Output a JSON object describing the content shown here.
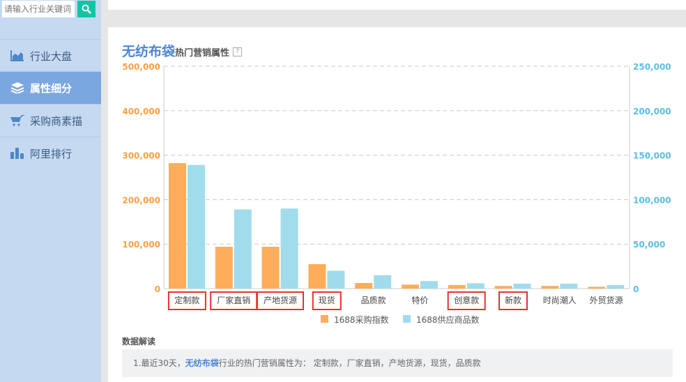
{
  "sidebar": {
    "search_placeholder": "请输入行业关键词",
    "items": [
      {
        "label": "行业大盘",
        "icon": "area-chart-icon"
      },
      {
        "label": "属性细分",
        "icon": "layers-icon",
        "active": true
      },
      {
        "label": "采购商素描",
        "icon": "cart-icon"
      },
      {
        "label": "阿里排行",
        "icon": "bar-chart-icon"
      }
    ]
  },
  "header": {
    "keyword": "无纺布袋",
    "title": "热门营销属性",
    "help": "?"
  },
  "chart_data": {
    "type": "bar",
    "categories": [
      "定制款",
      "厂家直销",
      "产地货源",
      "现货",
      "品质款",
      "特价",
      "创意款",
      "新款",
      "时尚潮人",
      "外贸货源"
    ],
    "highlighted": [
      "定制款",
      "厂家直销",
      "产地货源",
      "现货",
      "创意款",
      "新款"
    ],
    "series": [
      {
        "name": "1688采购指数",
        "axis": "left",
        "color": "#ffad5a",
        "values": [
          282000,
          94000,
          94000,
          55000,
          12500,
          9000,
          8000,
          6000,
          6000,
          4000
        ]
      },
      {
        "name": "1688供应商品数",
        "axis": "right",
        "color": "#a0dcec",
        "values": [
          139000,
          89000,
          90000,
          20000,
          15000,
          8500,
          6000,
          5500,
          5500,
          4000
        ]
      }
    ],
    "left_axis": {
      "range": [
        0,
        500000
      ],
      "ticks": [
        "0",
        "100,000",
        "200,000",
        "300,000",
        "400,000",
        "500,000"
      ],
      "color": "#ff9f43"
    },
    "right_axis": {
      "range": [
        0,
        250000
      ],
      "ticks": [
        "0",
        "50,000",
        "100,000",
        "150,000",
        "200,000",
        "250,000"
      ],
      "color": "#5bbde0"
    },
    "grid": true,
    "legend": "bottom"
  },
  "reading": {
    "title": "数据解读",
    "prefix": "1.最近30天，",
    "keyword": "无纺布袋",
    "suffix": "行业的热门营销属性为： 定制款，厂家直销，产地货源，现货，品质款"
  }
}
